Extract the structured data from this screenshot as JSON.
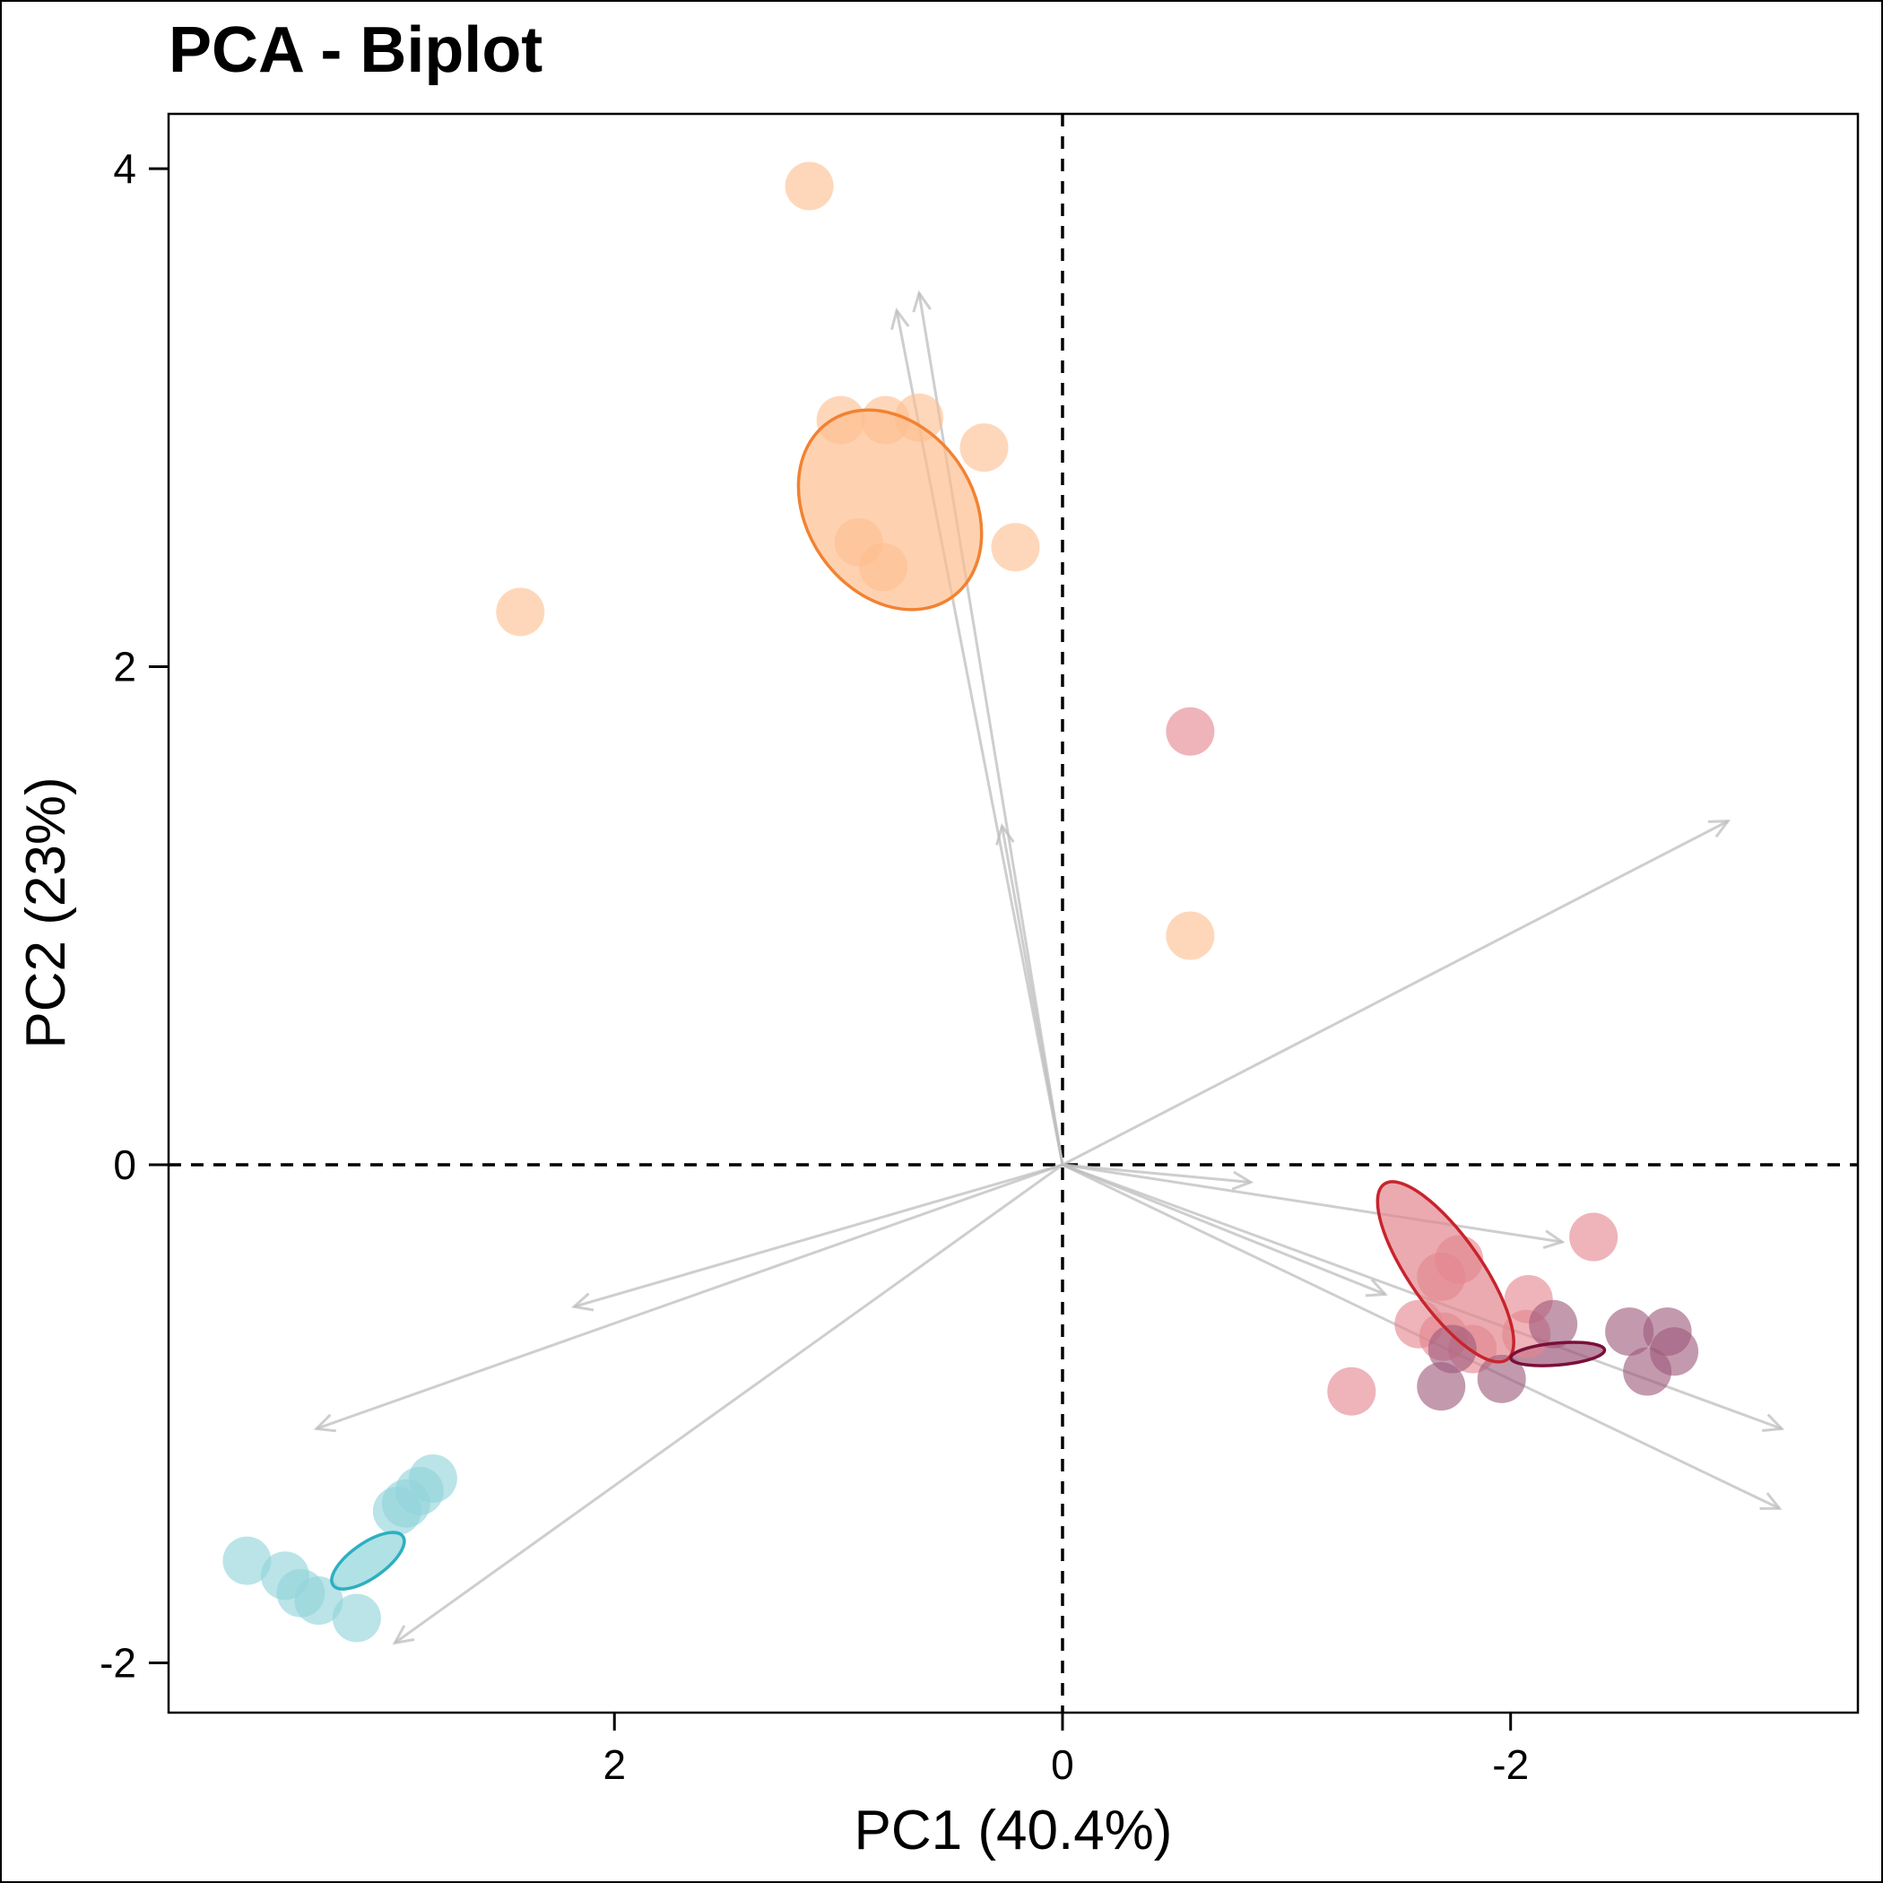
{
  "chart_data": {
    "type": "scatter",
    "title": "PCA - Biplot",
    "xlabel": "PC1 (40.4%)",
    "ylabel": "PC2 (23%)",
    "x_reversed": true,
    "xlim": [
      3.99,
      -3.55
    ],
    "ylim": [
      -2.2,
      4.22
    ],
    "x_ticks": [
      2,
      0,
      -2
    ],
    "x_tick_labels": [
      "2",
      "0",
      "-2"
    ],
    "y_ticks": [
      4,
      2,
      0,
      -2
    ],
    "y_tick_labels": [
      "4",
      "2",
      "0",
      "-2"
    ],
    "reference_lines": [
      {
        "axis": "x",
        "value": 0
      },
      {
        "axis": "y",
        "value": 0
      }
    ],
    "grid": false,
    "legend": "none",
    "series": [
      {
        "color": "#fdbf8f",
        "ellipse_color": "#f28232",
        "ellipse": {
          "cx": 0.77,
          "cy": 2.63,
          "rx": 0.37,
          "ry": 0.43,
          "angle": -35
        },
        "points": [
          [
            1.13,
            3.93
          ],
          [
            0.99,
            2.99
          ],
          [
            0.79,
            2.99
          ],
          [
            0.64,
            3.0
          ],
          [
            0.35,
            2.88
          ],
          [
            0.91,
            2.5
          ],
          [
            0.8,
            2.4
          ],
          [
            0.21,
            2.48
          ],
          [
            2.42,
            2.22
          ]
        ]
      },
      {
        "color": "#fdbf8f",
        "ellipse_color": null,
        "ellipse": null,
        "points": [
          [
            -0.57,
            0.92
          ]
        ]
      },
      {
        "color": "#e3868e",
        "ellipse_color": "#c8242c",
        "ellipse": {
          "cx": -1.71,
          "cy": -0.43,
          "rx": 0.16,
          "ry": 0.43,
          "angle": -35
        },
        "points": [
          [
            -0.57,
            1.74
          ],
          [
            -1.77,
            -0.38
          ],
          [
            -1.69,
            -0.45
          ],
          [
            -2.08,
            -0.54
          ],
          [
            -2.37,
            -0.29
          ],
          [
            -1.59,
            -0.64
          ],
          [
            -1.7,
            -0.69
          ],
          [
            -1.83,
            -0.74
          ],
          [
            -2.07,
            -0.68
          ],
          [
            -1.29,
            -0.91
          ]
        ]
      },
      {
        "color": "#9e5a7c",
        "ellipse_color": "#7a0f3a",
        "ellipse": {
          "cx": -2.21,
          "cy": -0.76,
          "rx": 0.21,
          "ry": 0.044,
          "angle": -5
        },
        "points": [
          [
            -2.19,
            -0.64
          ],
          [
            -1.74,
            -0.74
          ],
          [
            -2.53,
            -0.67
          ],
          [
            -2.7,
            -0.67
          ],
          [
            -2.73,
            -0.75
          ],
          [
            -1.69,
            -0.89
          ],
          [
            -1.96,
            -0.86
          ],
          [
            -2.61,
            -0.83
          ]
        ]
      },
      {
        "color": "#8fd4da",
        "ellipse_color": "#2cb0c0",
        "ellipse": {
          "cx": 3.1,
          "cy": -1.59,
          "rx": 0.19,
          "ry": 0.07,
          "angle": -35
        },
        "points": [
          [
            2.81,
            -1.26
          ],
          [
            2.87,
            -1.31
          ],
          [
            2.93,
            -1.36
          ],
          [
            2.97,
            -1.39
          ],
          [
            3.64,
            -1.59
          ],
          [
            3.47,
            -1.65
          ],
          [
            3.4,
            -1.72
          ],
          [
            3.32,
            -1.75
          ],
          [
            3.15,
            -1.82
          ]
        ]
      }
    ],
    "loadings": [
      [
        0.74,
        3.43
      ],
      [
        0.64,
        3.5
      ],
      [
        0.27,
        1.36
      ],
      [
        -0.84,
        -0.07
      ],
      [
        -2.23,
        -0.31
      ],
      [
        -1.44,
        -0.52
      ],
      [
        2.18,
        -0.57
      ],
      [
        3.33,
        -1.06
      ],
      [
        2.98,
        -1.92
      ],
      [
        -2.97,
        1.38
      ],
      [
        -3.21,
        -1.06
      ],
      [
        -3.2,
        -1.38
      ]
    ]
  }
}
